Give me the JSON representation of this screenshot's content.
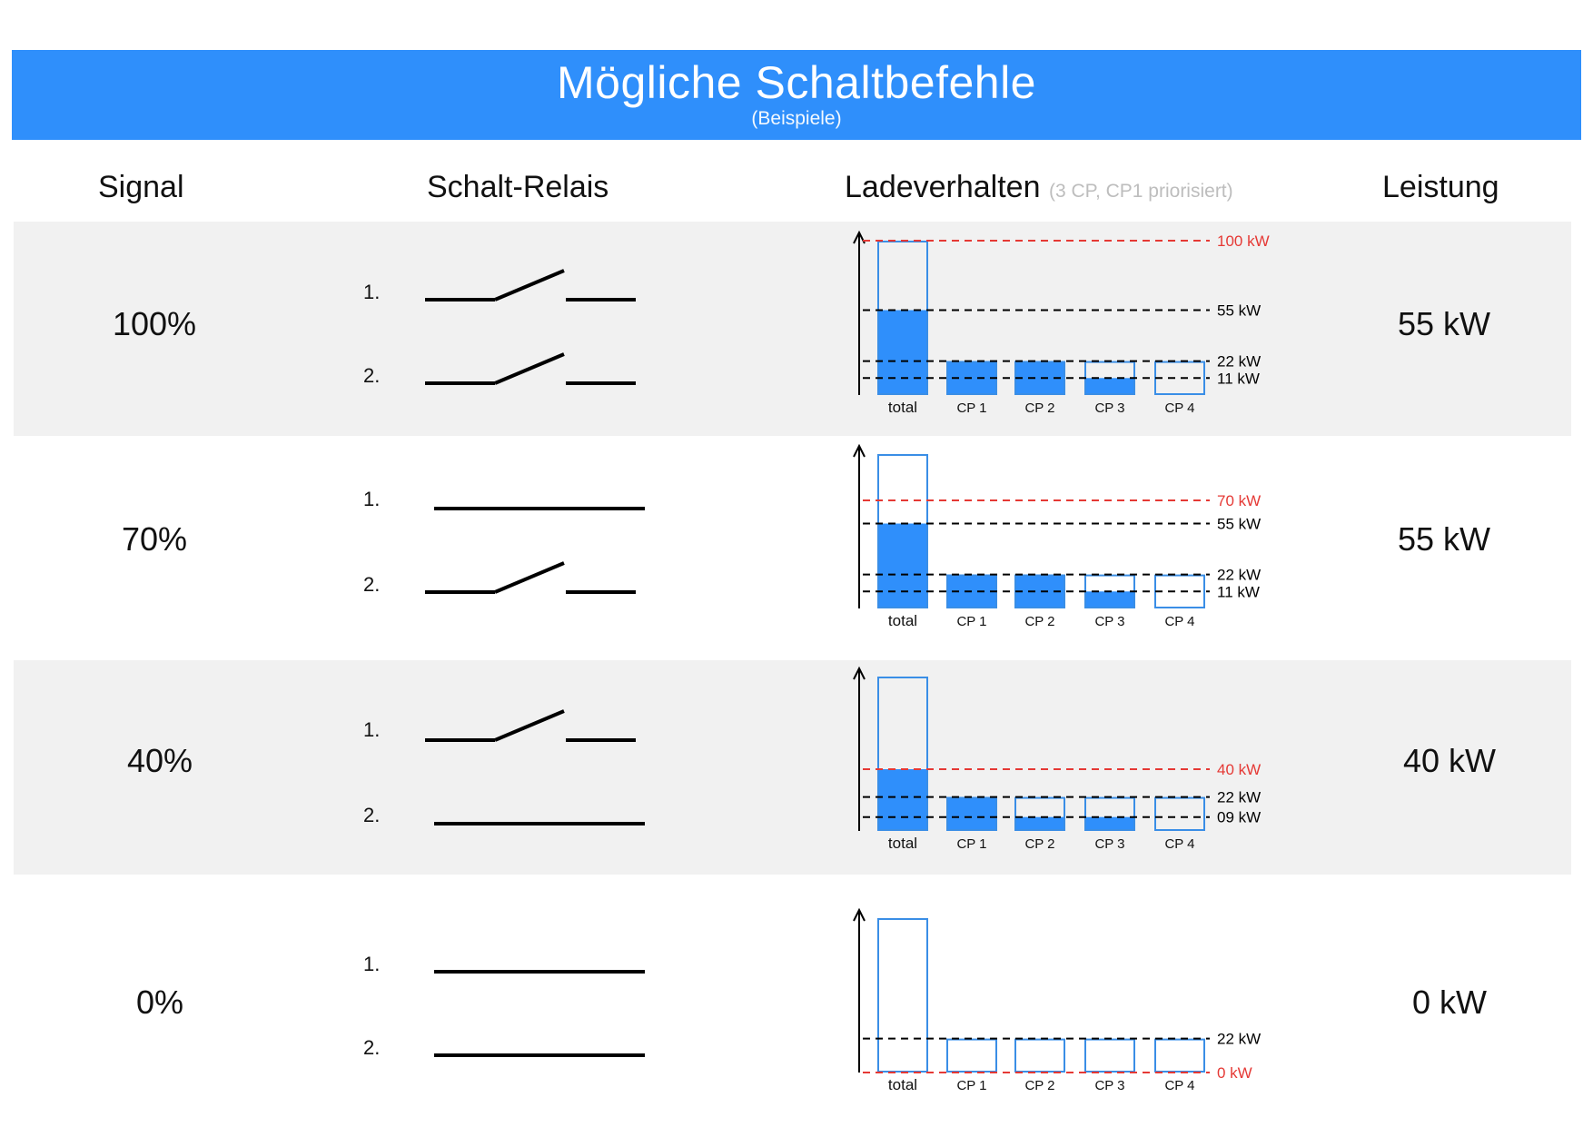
{
  "header": {
    "title": "Mögliche Schaltbefehle",
    "subtitle": "(Beispiele)"
  },
  "columns": {
    "signal": "Signal",
    "relais": "Schalt-Relais",
    "ladeverhalten": "Ladeverhalten",
    "ladeverhalten_note": "(3 CP, CP1 priorisiert)",
    "leistung": "Leistung"
  },
  "colors": {
    "banner": "#2f8ffb",
    "fill": "#2f8ffb",
    "outline": "#3a8ee6",
    "limit_line": "#e53935",
    "ref_line": "#000000",
    "row_shade": "#f1f1f1"
  },
  "relay_labels": [
    "1.",
    "2."
  ],
  "rows": [
    {
      "signal": "100%",
      "leistung": "55 kW",
      "relays": [
        "open",
        "open"
      ],
      "chart_data": {
        "type": "bar",
        "categories": [
          "total",
          "CP 1",
          "CP 2",
          "CP 3",
          "CP 4"
        ],
        "capacity": [
          100,
          22,
          22,
          22,
          22
        ],
        "values": [
          55,
          22,
          22,
          11,
          0
        ],
        "reference_lines": [
          {
            "label": "100 kW",
            "value": 100,
            "color": "red"
          },
          {
            "label": "55 kW",
            "value": 55,
            "color": "black"
          },
          {
            "label": "22 kW",
            "value": 22,
            "color": "black"
          },
          {
            "label": "11 kW",
            "value": 11,
            "color": "black"
          }
        ]
      }
    },
    {
      "signal": "70%",
      "leistung": "55 kW",
      "relays": [
        "closed",
        "open"
      ],
      "chart_data": {
        "type": "bar",
        "categories": [
          "total",
          "CP 1",
          "CP 2",
          "CP 3",
          "CP 4"
        ],
        "capacity": [
          100,
          22,
          22,
          22,
          22
        ],
        "values": [
          55,
          22,
          22,
          11,
          0
        ],
        "reference_lines": [
          {
            "label": "70 kW",
            "value": 70,
            "color": "red"
          },
          {
            "label": "55 kW",
            "value": 55,
            "color": "black"
          },
          {
            "label": "22 kW",
            "value": 22,
            "color": "black"
          },
          {
            "label": "11 kW",
            "value": 11,
            "color": "black"
          }
        ]
      }
    },
    {
      "signal": "40%",
      "leistung": "40 kW",
      "relays": [
        "open",
        "closed"
      ],
      "chart_data": {
        "type": "bar",
        "categories": [
          "total",
          "CP 1",
          "CP 2",
          "CP 3",
          "CP 4"
        ],
        "capacity": [
          100,
          22,
          22,
          22,
          22
        ],
        "values": [
          40,
          22,
          9,
          9,
          0
        ],
        "reference_lines": [
          {
            "label": "40 kW",
            "value": 40,
            "color": "red"
          },
          {
            "label": "22 kW",
            "value": 22,
            "color": "black"
          },
          {
            "label": "09 kW",
            "value": 9,
            "color": "black"
          }
        ]
      }
    },
    {
      "signal": "0%",
      "leistung": "0 kW",
      "relays": [
        "closed",
        "closed"
      ],
      "chart_data": {
        "type": "bar",
        "categories": [
          "total",
          "CP 1",
          "CP 2",
          "CP 3",
          "CP 4"
        ],
        "capacity": [
          100,
          22,
          22,
          22,
          22
        ],
        "values": [
          0,
          0,
          0,
          0,
          0
        ],
        "reference_lines": [
          {
            "label": "22 kW",
            "value": 22,
            "color": "black"
          },
          {
            "label": "0 kW",
            "value": 0,
            "color": "red"
          }
        ]
      }
    }
  ]
}
